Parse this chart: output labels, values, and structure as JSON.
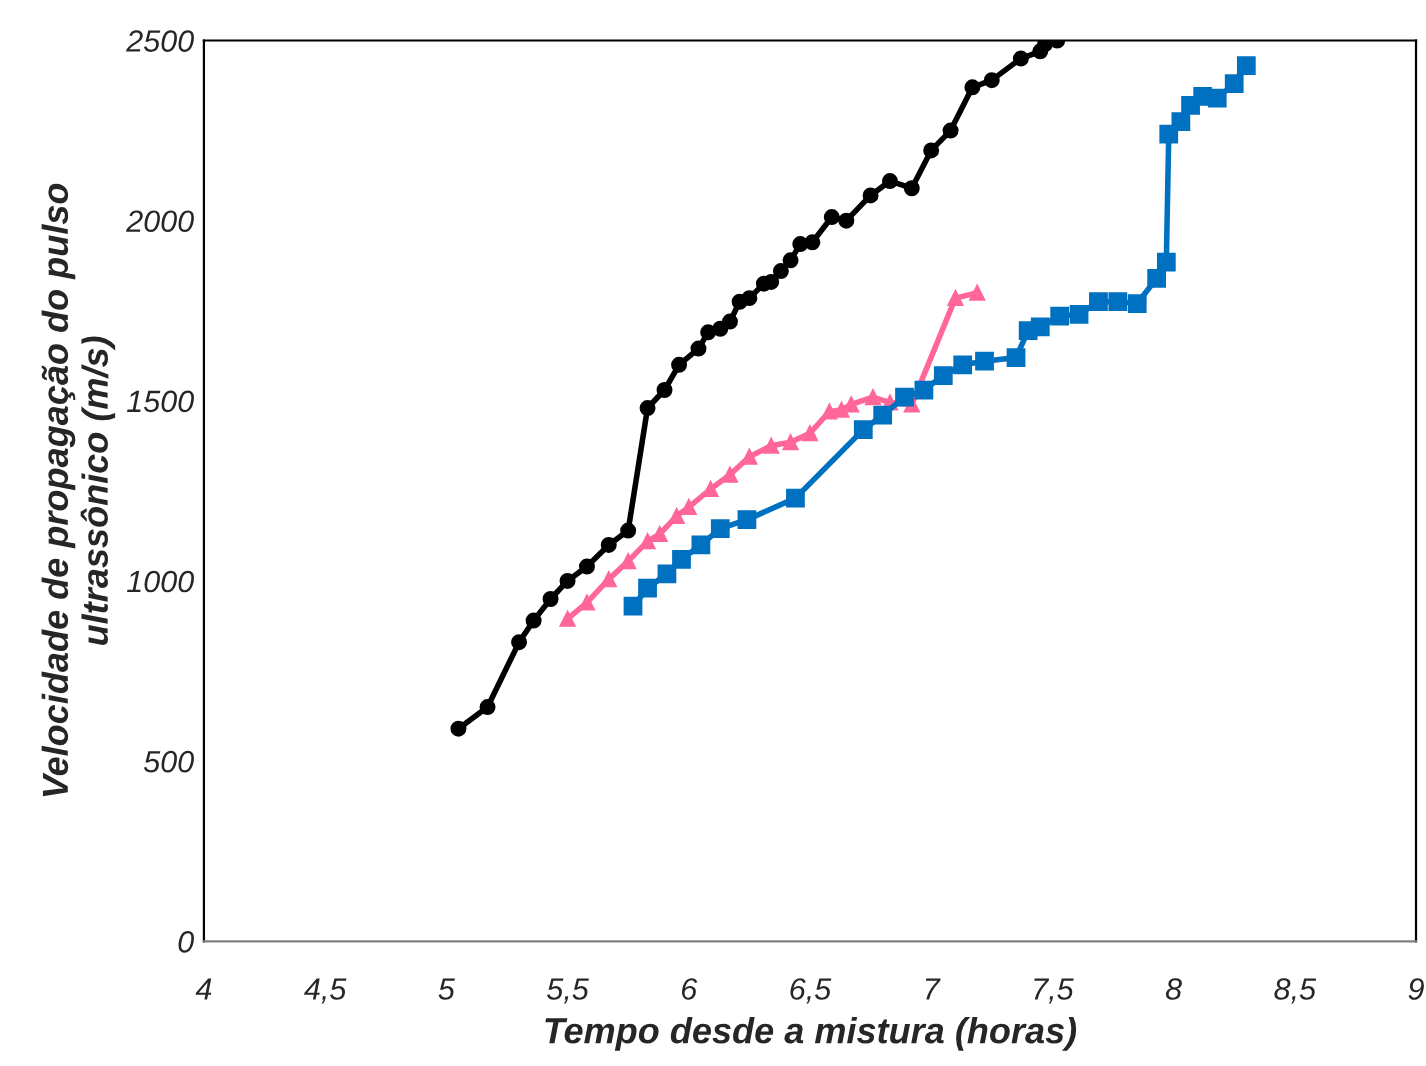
{
  "chart_data": {
    "type": "line",
    "xlabel": "Tempo desde a mistura (horas)",
    "ylabel": "Velocidade de propagação do pulso\nultrassônico (m/s)",
    "xlim": [
      4,
      9
    ],
    "xticks": [
      {
        "value": 4,
        "label": "4"
      },
      {
        "value": 4.5,
        "label": "4,5"
      },
      {
        "value": 5,
        "label": "5"
      },
      {
        "value": 5.5,
        "label": "5,5"
      },
      {
        "value": 6,
        "label": "6"
      },
      {
        "value": 6.5,
        "label": "6,5"
      },
      {
        "value": 7,
        "label": "7"
      },
      {
        "value": 7.5,
        "label": "7,5"
      },
      {
        "value": 8,
        "label": "8"
      },
      {
        "value": 8.5,
        "label": "8,5"
      },
      {
        "value": 9,
        "label": "9"
      }
    ],
    "ylim": [
      0,
      2500
    ],
    "yticks": [
      0,
      500,
      1000,
      1500,
      2000,
      2500
    ],
    "grid": false,
    "legend": false,
    "line_style": "solid",
    "series": [
      {
        "color": "#000000",
        "marker": "circle",
        "x": [
          5.05,
          5.17,
          5.3,
          5.36,
          5.43,
          5.5,
          5.58,
          5.67,
          5.75,
          5.83,
          5.9,
          5.96,
          6.04,
          6.08,
          6.13,
          6.17,
          6.21,
          6.25,
          6.31,
          6.34,
          6.38,
          6.42,
          6.46,
          6.51,
          6.59,
          6.65,
          6.75,
          6.83,
          6.92,
          7.0,
          7.08,
          7.17,
          7.25,
          7.37,
          7.45,
          7.47,
          7.52
        ],
        "values": [
          590,
          650,
          830,
          890,
          950,
          1000,
          1040,
          1100,
          1140,
          1480,
          1530,
          1600,
          1645,
          1690,
          1700,
          1720,
          1775,
          1785,
          1825,
          1830,
          1860,
          1890,
          1935,
          1940,
          2010,
          2000,
          2070,
          2110,
          2090,
          2195,
          2250,
          2370,
          2390,
          2450,
          2470,
          2490,
          2500
        ]
      },
      {
        "color": "#ff6699",
        "marker": "triangle",
        "x": [
          5.5,
          5.58,
          5.67,
          5.75,
          5.83,
          5.88,
          5.95,
          6.0,
          6.09,
          6.17,
          6.25,
          6.34,
          6.42,
          6.5,
          6.58,
          6.63,
          6.67,
          6.76,
          6.83,
          6.92,
          7.1,
          7.19
        ],
        "values": [
          895,
          940,
          1005,
          1055,
          1110,
          1130,
          1180,
          1205,
          1255,
          1295,
          1345,
          1375,
          1385,
          1410,
          1470,
          1475,
          1490,
          1510,
          1495,
          1490,
          1785,
          1800
        ]
      },
      {
        "color": "#0070c0",
        "marker": "square",
        "x": [
          5.77,
          5.83,
          5.91,
          5.97,
          6.05,
          6.13,
          6.24,
          6.44,
          6.72,
          6.8,
          6.89,
          6.97,
          7.05,
          7.13,
          7.22,
          7.35,
          7.4,
          7.45,
          7.53,
          7.61,
          7.69,
          7.77,
          7.85,
          7.93,
          7.97,
          7.98,
          8.03,
          8.07,
          8.12,
          8.18,
          8.25,
          8.3
        ],
        "values": [
          930,
          980,
          1020,
          1060,
          1100,
          1145,
          1170,
          1230,
          1420,
          1460,
          1510,
          1530,
          1570,
          1600,
          1610,
          1620,
          1695,
          1705,
          1735,
          1740,
          1775,
          1775,
          1770,
          1840,
          1885,
          2240,
          2275,
          2320,
          2345,
          2340,
          2380,
          2430
        ]
      }
    ]
  }
}
